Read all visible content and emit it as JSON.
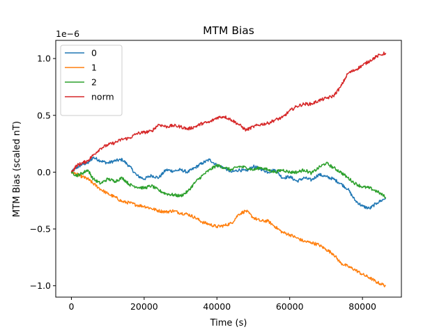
{
  "chart_data": {
    "type": "line",
    "title": "MTM Bias",
    "xlabel": "Time (s)",
    "ylabel": "MTM Bias (scaled nT)",
    "y_scale_label": "1e−6",
    "xlim": [
      -4300,
      90700
    ],
    "ylim": [
      -1.1,
      1.16
    ],
    "x_ticks": [
      0,
      20000,
      40000,
      60000,
      80000
    ],
    "x_tick_labels": [
      "0",
      "20000",
      "40000",
      "60000",
      "80000"
    ],
    "y_ticks": [
      -1.0,
      -0.5,
      0.0,
      0.5,
      1.0
    ],
    "y_tick_labels": [
      "−1.0",
      "−0.5",
      "0.0",
      "0.5",
      "1.0"
    ],
    "grid": false,
    "legend_position": "top-left",
    "series": [
      {
        "name": "0",
        "color": "#1f77b4",
        "x": [
          0,
          1500,
          3000,
          4500,
          6000,
          8000,
          10000,
          12000,
          14000,
          16000,
          18000,
          20000,
          22000,
          24000,
          26000,
          28000,
          30000,
          32000,
          34000,
          36000,
          38000,
          40000,
          42000,
          44000,
          46000,
          48000,
          50000,
          52000,
          54000,
          56000,
          58000,
          60000,
          62000,
          64000,
          66000,
          68000,
          70000,
          72000,
          74000,
          76000,
          78000,
          80000,
          82000,
          84000,
          86400
        ],
        "y": [
          0.0,
          0.04,
          0.07,
          0.08,
          0.13,
          0.1,
          0.08,
          0.1,
          0.11,
          0.05,
          -0.03,
          -0.06,
          -0.03,
          -0.05,
          0.02,
          0.01,
          0.02,
          0.0,
          0.04,
          0.08,
          0.11,
          0.06,
          0.04,
          0.0,
          0.02,
          0.01,
          0.05,
          0.03,
          0.0,
          0.02,
          -0.05,
          -0.04,
          -0.08,
          -0.05,
          -0.07,
          -0.02,
          -0.04,
          -0.06,
          -0.1,
          -0.15,
          -0.25,
          -0.3,
          -0.32,
          -0.27,
          -0.23
        ]
      },
      {
        "name": "1",
        "color": "#ff7f0e",
        "x": [
          0,
          1500,
          3000,
          4500,
          6000,
          8000,
          10000,
          12000,
          14000,
          16000,
          18000,
          20000,
          22000,
          24000,
          26000,
          28000,
          30000,
          32000,
          34000,
          36000,
          38000,
          40000,
          42000,
          44000,
          46000,
          48000,
          50000,
          52000,
          54000,
          56000,
          58000,
          60000,
          62000,
          64000,
          66000,
          68000,
          70000,
          72000,
          74000,
          76000,
          78000,
          80000,
          82000,
          84000,
          86400
        ],
        "y": [
          0.0,
          -0.02,
          -0.04,
          -0.06,
          -0.1,
          -0.15,
          -0.19,
          -0.22,
          -0.26,
          -0.27,
          -0.29,
          -0.3,
          -0.32,
          -0.34,
          -0.35,
          -0.34,
          -0.36,
          -0.37,
          -0.4,
          -0.44,
          -0.46,
          -0.48,
          -0.47,
          -0.45,
          -0.37,
          -0.34,
          -0.4,
          -0.43,
          -0.43,
          -0.48,
          -0.53,
          -0.55,
          -0.58,
          -0.61,
          -0.62,
          -0.64,
          -0.68,
          -0.72,
          -0.8,
          -0.83,
          -0.86,
          -0.9,
          -0.93,
          -0.97,
          -1.0
        ]
      },
      {
        "name": "2",
        "color": "#2ca02c",
        "x": [
          0,
          1500,
          3000,
          4500,
          6000,
          8000,
          10000,
          12000,
          14000,
          16000,
          18000,
          20000,
          22000,
          24000,
          26000,
          28000,
          30000,
          32000,
          34000,
          36000,
          38000,
          40000,
          42000,
          44000,
          46000,
          48000,
          50000,
          52000,
          54000,
          56000,
          58000,
          60000,
          62000,
          64000,
          66000,
          68000,
          70000,
          72000,
          74000,
          76000,
          78000,
          80000,
          82000,
          84000,
          86400
        ],
        "y": [
          0.0,
          -0.03,
          -0.01,
          0.02,
          -0.06,
          -0.1,
          -0.06,
          -0.08,
          -0.05,
          -0.11,
          -0.13,
          -0.14,
          -0.12,
          -0.16,
          -0.19,
          -0.2,
          -0.21,
          -0.17,
          -0.09,
          -0.03,
          0.02,
          0.06,
          0.04,
          0.02,
          0.05,
          0.04,
          0.02,
          0.04,
          0.02,
          0.0,
          0.02,
          0.0,
          0.0,
          0.02,
          -0.01,
          0.04,
          0.08,
          0.04,
          0.0,
          -0.05,
          -0.1,
          -0.13,
          -0.14,
          -0.17,
          -0.22
        ]
      },
      {
        "name": "norm",
        "color": "#d62728",
        "x": [
          0,
          1500,
          3000,
          4500,
          6000,
          8000,
          10000,
          12000,
          14000,
          16000,
          18000,
          20000,
          22000,
          24000,
          26000,
          28000,
          30000,
          32000,
          34000,
          36000,
          38000,
          40000,
          42000,
          44000,
          46000,
          48000,
          50000,
          52000,
          54000,
          56000,
          58000,
          60000,
          62000,
          64000,
          66000,
          68000,
          70000,
          72000,
          74000,
          76000,
          78000,
          80000,
          82000,
          84000,
          86400
        ],
        "y": [
          0.0,
          0.06,
          0.08,
          0.1,
          0.15,
          0.21,
          0.24,
          0.26,
          0.29,
          0.3,
          0.34,
          0.35,
          0.36,
          0.42,
          0.4,
          0.41,
          0.4,
          0.38,
          0.4,
          0.43,
          0.44,
          0.48,
          0.49,
          0.46,
          0.42,
          0.37,
          0.4,
          0.42,
          0.43,
          0.46,
          0.48,
          0.54,
          0.58,
          0.6,
          0.6,
          0.63,
          0.65,
          0.67,
          0.75,
          0.87,
          0.9,
          0.94,
          0.98,
          1.02,
          1.05
        ]
      }
    ]
  }
}
